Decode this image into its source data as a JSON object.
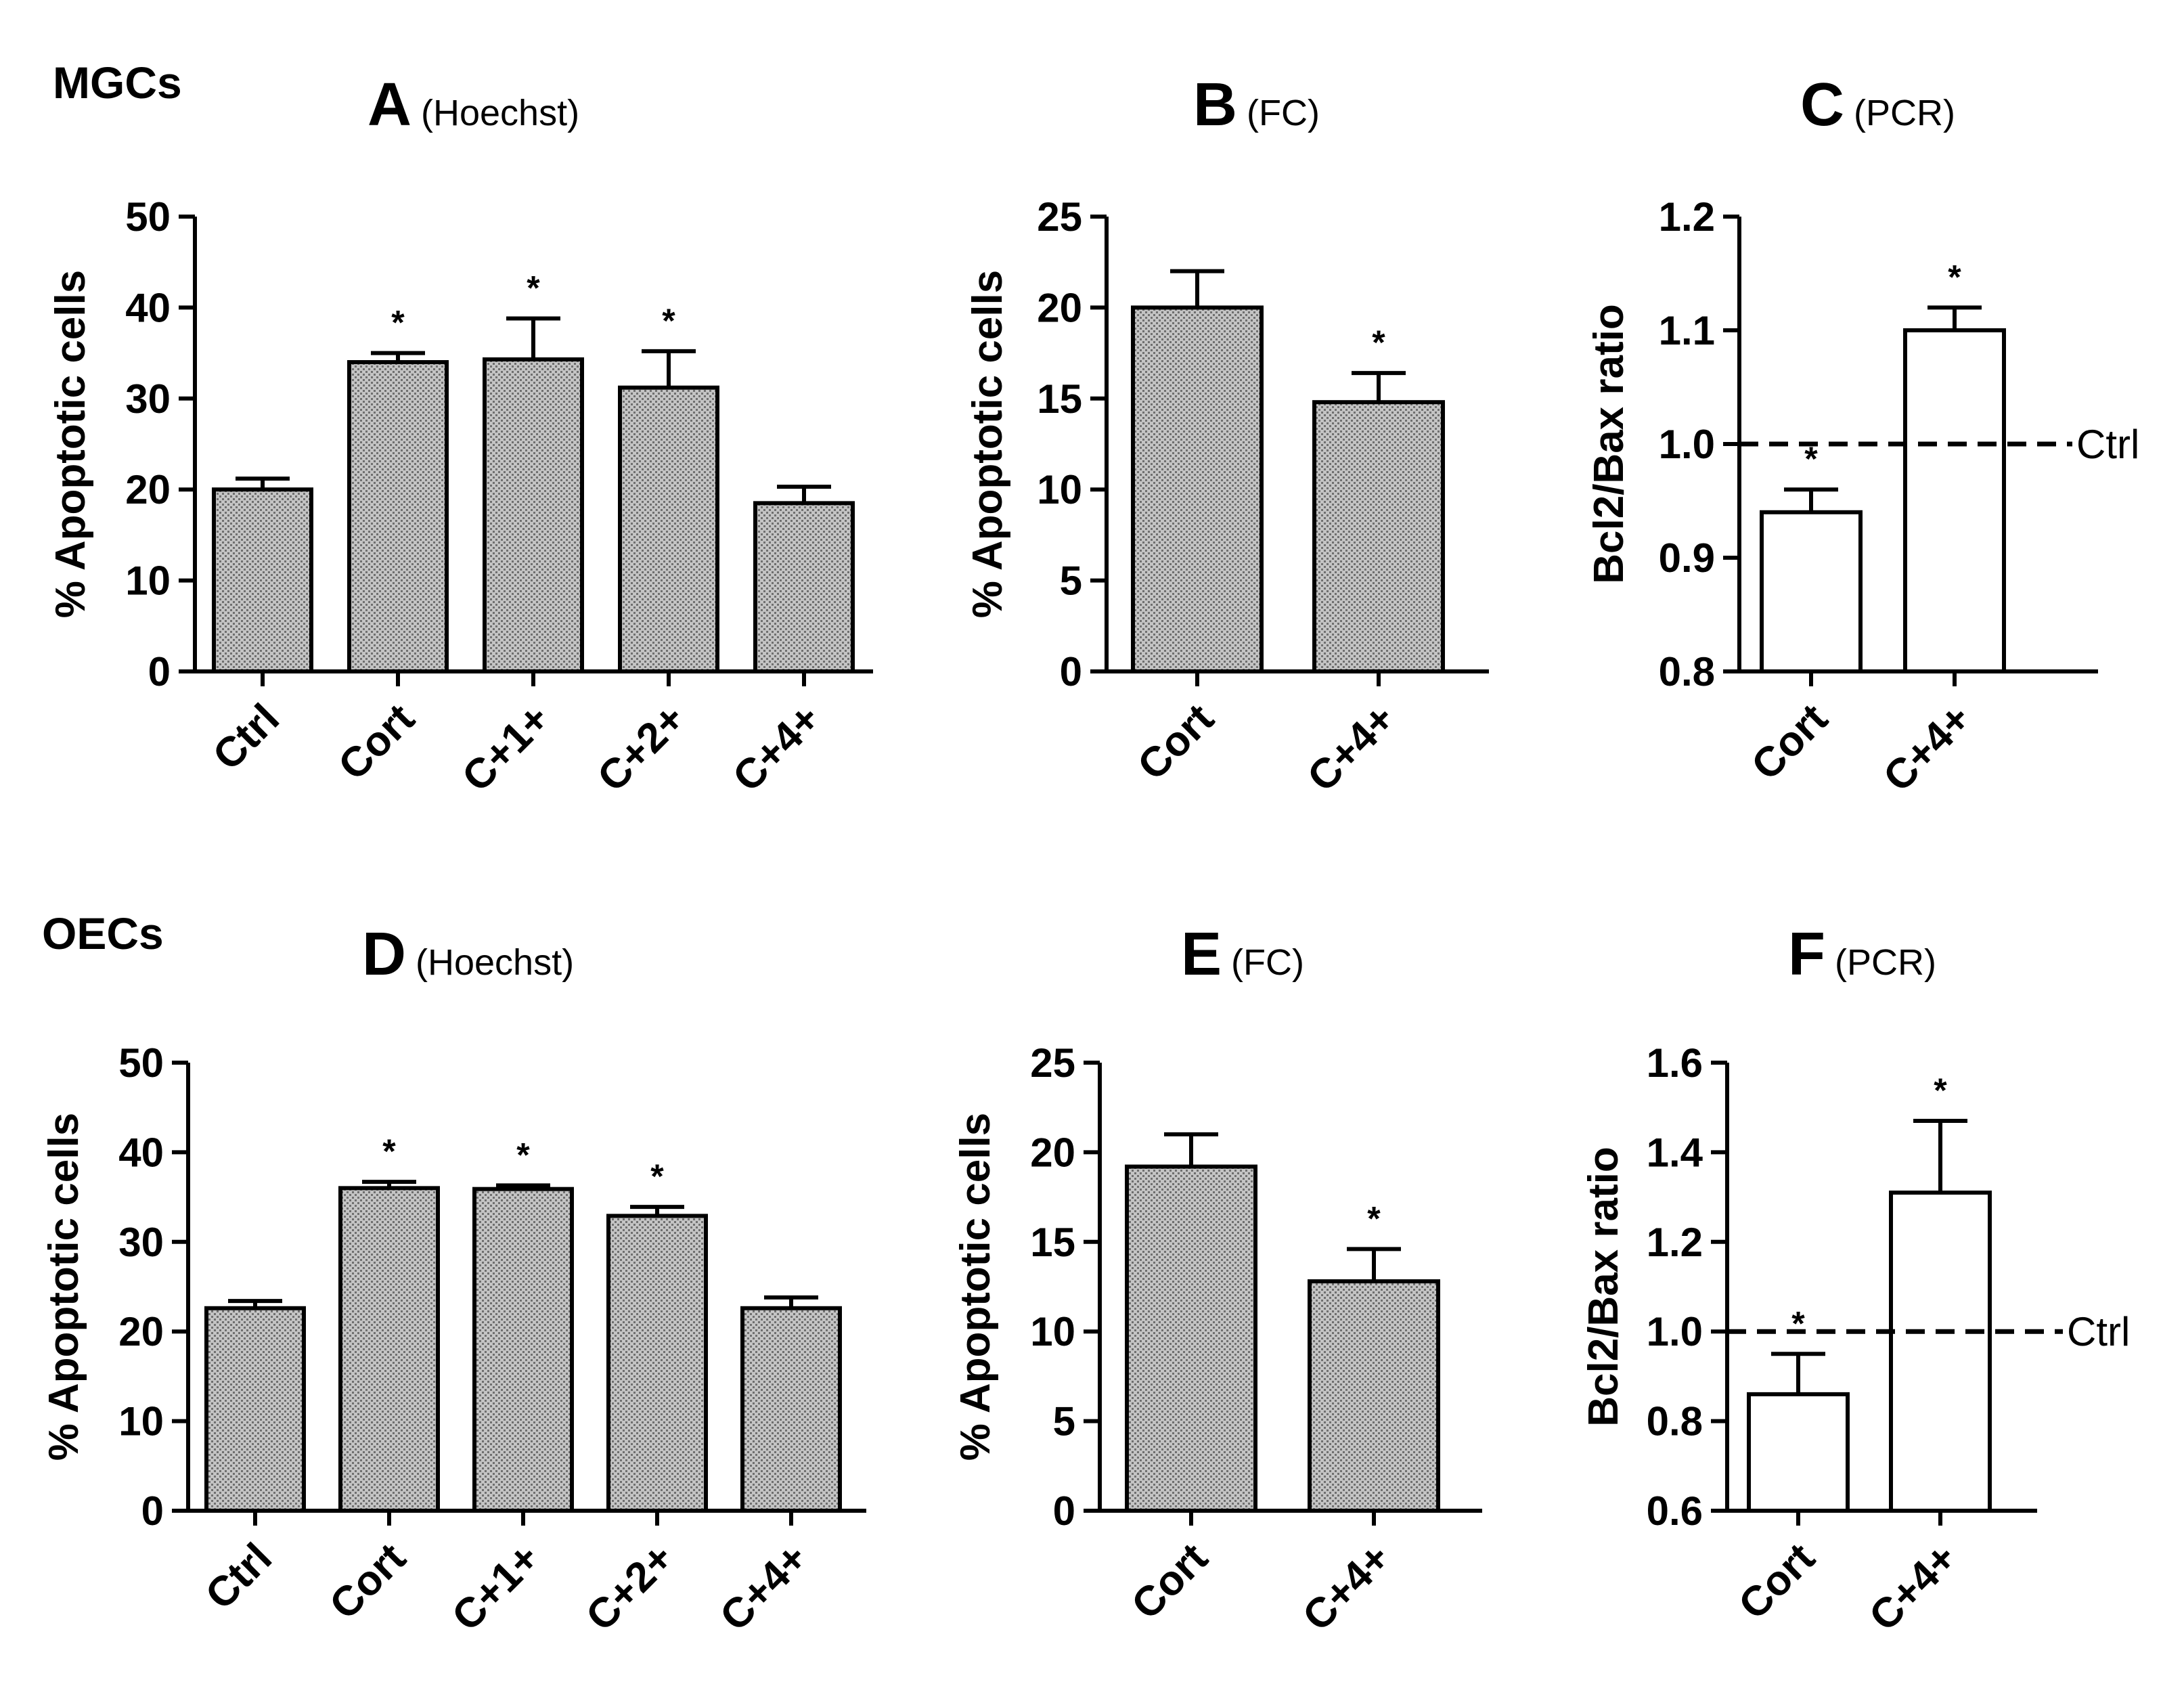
{
  "figure": {
    "row_labels": [
      "MGCs",
      "OECs"
    ]
  },
  "chart_data": [
    {
      "panel": "A",
      "method": "(Hoechst)",
      "type": "bar",
      "ylabel": "% Apoptotic cells",
      "ylim": [
        0,
        50
      ],
      "yticks": [
        0,
        10,
        20,
        30,
        40,
        50
      ],
      "categories": [
        "Ctrl",
        "Cort",
        "C+1+",
        "C+2+",
        "C+4+"
      ],
      "values": [
        20,
        34,
        34.3,
        31.2,
        18.5
      ],
      "errors": [
        1.2,
        1.0,
        4.5,
        4.0,
        1.8
      ],
      "significant": [
        false,
        true,
        true,
        true,
        false
      ],
      "significance_marker": "*",
      "bar_fill": "patterned gray",
      "reference_line": null
    },
    {
      "panel": "B",
      "method": "(FC)",
      "type": "bar",
      "ylabel": "% Apoptotic cells",
      "ylim": [
        0,
        25
      ],
      "yticks": [
        0,
        5,
        10,
        15,
        20,
        25
      ],
      "categories": [
        "Cort",
        "C+4+"
      ],
      "values": [
        20,
        14.8
      ],
      "errors": [
        2.0,
        1.6
      ],
      "significant": [
        false,
        true
      ],
      "significance_marker": "*",
      "bar_fill": "patterned gray",
      "reference_line": null
    },
    {
      "panel": "C",
      "method": "(PCR)",
      "type": "bar",
      "ylabel": "Bcl2/Bax ratio",
      "ylim": [
        0.8,
        1.2
      ],
      "yticks": [
        0.8,
        0.9,
        1.0,
        1.1,
        1.2
      ],
      "categories": [
        "Cort",
        "C+4+"
      ],
      "values": [
        0.94,
        1.1
      ],
      "errors": [
        0.02,
        0.02
      ],
      "significant": [
        true,
        true
      ],
      "significance_marker": "*",
      "bar_fill": "white",
      "reference_line": {
        "value": 1.0,
        "label": "Ctrl",
        "style": "dashed"
      }
    },
    {
      "panel": "D",
      "method": "(Hoechst)",
      "type": "bar",
      "ylabel": "% Apoptotic cells",
      "ylim": [
        0,
        50
      ],
      "yticks": [
        0,
        10,
        20,
        30,
        40,
        50
      ],
      "categories": [
        "Ctrl",
        "Cort",
        "C+1+",
        "C+2+",
        "C+4+"
      ],
      "values": [
        22.6,
        36,
        35.9,
        32.9,
        22.6
      ],
      "errors": [
        0.8,
        0.7,
        0.4,
        1.0,
        1.2
      ],
      "significant": [
        false,
        true,
        true,
        true,
        false
      ],
      "significance_marker": "*",
      "bar_fill": "patterned gray",
      "reference_line": null
    },
    {
      "panel": "E",
      "method": "(FC)",
      "type": "bar",
      "ylabel": "% Apoptotic cells",
      "ylim": [
        0,
        25
      ],
      "yticks": [
        0,
        5,
        10,
        15,
        20,
        25
      ],
      "categories": [
        "Cort",
        "C+4+"
      ],
      "values": [
        19.2,
        12.8
      ],
      "errors": [
        1.8,
        1.8
      ],
      "significant": [
        false,
        true
      ],
      "significance_marker": "*",
      "bar_fill": "patterned gray",
      "reference_line": null
    },
    {
      "panel": "F",
      "method": "(PCR)",
      "type": "bar",
      "ylabel": "Bcl2/Bax ratio",
      "ylim": [
        0.6,
        1.6
      ],
      "yticks": [
        0.6,
        0.8,
        1.0,
        1.2,
        1.4,
        1.6
      ],
      "categories": [
        "Cort",
        "C+4+"
      ],
      "values": [
        0.86,
        1.31
      ],
      "errors": [
        0.09,
        0.16
      ],
      "significant": [
        true,
        true
      ],
      "significance_marker": "*",
      "bar_fill": "white",
      "reference_line": {
        "value": 1.0,
        "label": "Ctrl",
        "style": "dashed"
      }
    }
  ]
}
